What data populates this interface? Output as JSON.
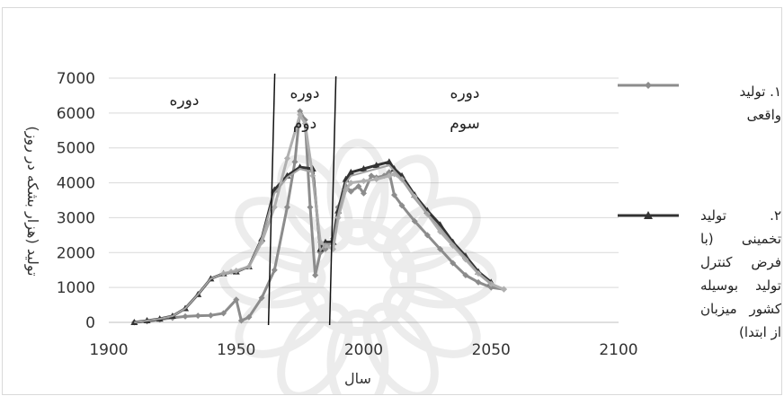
{
  "chart_data": {
    "type": "line",
    "xlabel": "سال",
    "ylabel": "تولید (هزار بشکه در روز)",
    "xlim": [
      1900,
      2100
    ],
    "ylim": [
      0,
      7000
    ],
    "x_ticks": [
      "1900",
      "1950",
      "2000",
      "2050",
      "2100"
    ],
    "y_ticks": [
      "0",
      "1000",
      "2000",
      "3000",
      "4000",
      "5000",
      "6000",
      "7000"
    ],
    "grid": "horizontal",
    "legend_position": "right",
    "periods": [
      {
        "label": "دوره",
        "sub": ""
      },
      {
        "label": "دوره",
        "sub": "دوم"
      },
      {
        "label": "دوره",
        "sub": "سوم"
      }
    ],
    "period_boundaries": [
      1963,
      1987
    ],
    "series": [
      {
        "name": "۱. تولید واقعی",
        "color": "#8c8c8c",
        "marker": "diamond",
        "x": [
          1910,
          1915,
          1920,
          1925,
          1930,
          1935,
          1940,
          1945,
          1950,
          1952,
          1955,
          1960,
          1965,
          1970,
          1973,
          1975,
          1977,
          1979,
          1981,
          1983,
          1985,
          1988,
          1990,
          1993,
          1995,
          1998,
          2000,
          2003,
          2005,
          2008,
          2010,
          2012,
          2015,
          2020,
          2025,
          2030,
          2035,
          2040,
          2045,
          2050,
          2055
        ],
        "values": [
          0,
          30,
          80,
          130,
          170,
          190,
          200,
          260,
          650,
          50,
          150,
          700,
          1500,
          3300,
          4600,
          6050,
          5800,
          3300,
          1350,
          2000,
          2100,
          2400,
          3300,
          3900,
          3750,
          3900,
          3700,
          4200,
          4150,
          4200,
          4300,
          3650,
          3350,
          2900,
          2500,
          2100,
          1700,
          1350,
          1150,
          1000,
          950
        ]
      },
      {
        "name": "۲. تولید تخمینی (با فرض کنترل تولید بوسیله کشور میزبان از ابتدا)",
        "color": "#333333",
        "marker": "triangle",
        "x": [
          1910,
          1915,
          1920,
          1925,
          1930,
          1935,
          1940,
          1945,
          1950,
          1955,
          1960,
          1965,
          1970,
          1975,
          1980,
          1983,
          1985,
          1988,
          1990,
          1993,
          1995,
          2000,
          2005,
          2010,
          2012,
          2015,
          2020,
          2025,
          2030,
          2035,
          2040,
          2045,
          2050
        ],
        "values": [
          0,
          50,
          100,
          180,
          400,
          800,
          1250,
          1400,
          1450,
          1600,
          2400,
          3800,
          4200,
          4450,
          4400,
          2100,
          2300,
          2300,
          3200,
          4100,
          4300,
          4400,
          4500,
          4600,
          4400,
          4200,
          3650,
          3200,
          2800,
          2300,
          1900,
          1450,
          1150
        ]
      },
      {
        "name": "",
        "color": "#b0b0b0",
        "marker": "diamond",
        "x": [
          1945,
          1948,
          1950,
          1955,
          1960,
          1965,
          1970,
          1975,
          1977,
          1980,
          1983,
          1985,
          1988,
          1990,
          1993,
          1995,
          2000,
          2005,
          2010,
          2012,
          2015,
          2020,
          2025,
          2030,
          2035,
          2040,
          2045,
          2050,
          2055
        ],
        "values": [
          1400,
          1450,
          1480,
          1600,
          2300,
          3300,
          4700,
          5950,
          5700,
          4200,
          2300,
          2200,
          2100,
          3000,
          3800,
          4000,
          4050,
          4100,
          4200,
          4250,
          4100,
          3600,
          3100,
          2600,
          2200,
          1800,
          1400,
          1100,
          950
        ]
      },
      {
        "name": "",
        "color": "#a3a3a3",
        "marker": "none",
        "x": [
          1910,
          1915,
          1920,
          1925,
          1930,
          1935,
          1940,
          1945,
          1950,
          1955,
          1960,
          1965,
          1970,
          1975,
          1980,
          1983,
          1985,
          1988,
          1990,
          1993,
          1995,
          2000,
          2005,
          2010,
          2015,
          2020,
          2025,
          2030,
          2035,
          2040,
          2045,
          2050
        ],
        "values": [
          0,
          50,
          100,
          180,
          400,
          800,
          1250,
          1400,
          1450,
          1600,
          2400,
          3700,
          4150,
          4400,
          4300,
          2050,
          2250,
          2250,
          3100,
          4000,
          4200,
          4300,
          4400,
          4500,
          4100,
          3550,
          3100,
          2700,
          2250,
          1850,
          1400,
          1100
        ]
      }
    ]
  }
}
